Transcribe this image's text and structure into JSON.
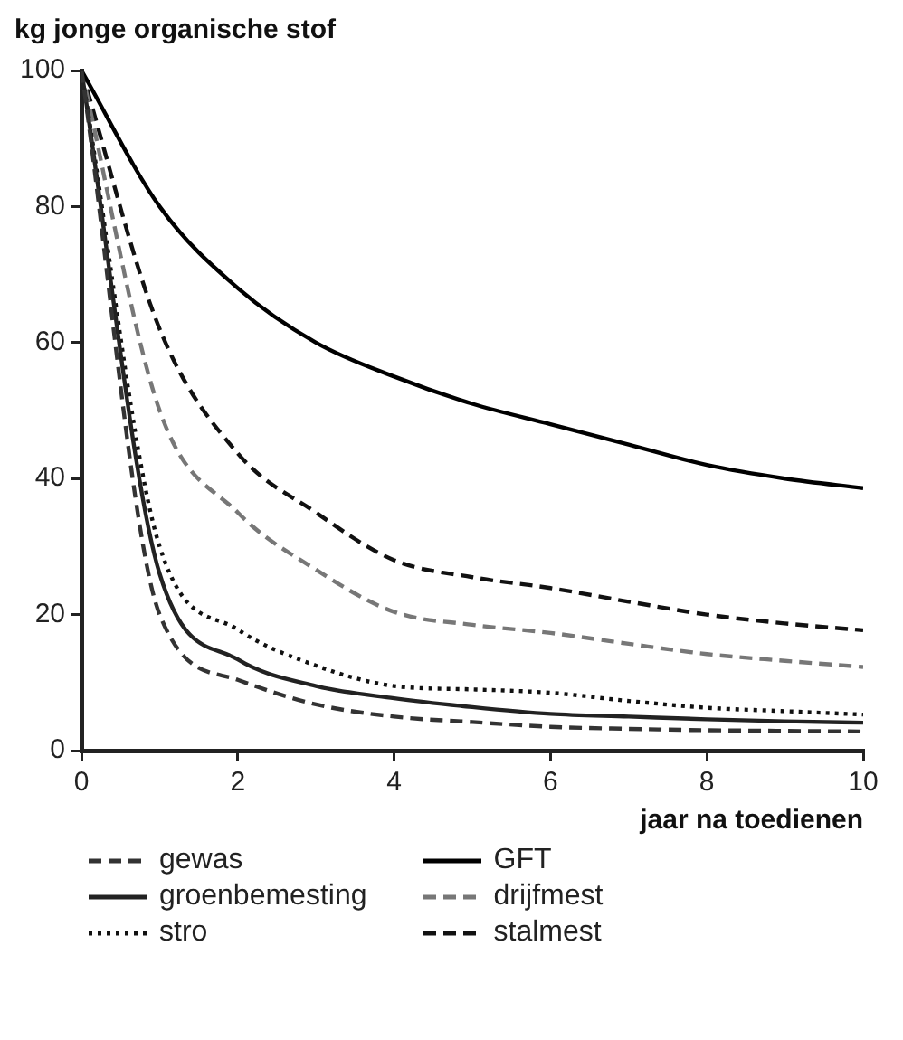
{
  "chart_data": {
    "type": "line",
    "ylabel": "kg jonge  organische stof",
    "xlabel": "jaar na toedienen",
    "x": [
      0,
      1,
      2,
      3,
      4,
      5,
      6,
      7,
      8,
      9,
      10
    ],
    "xlim": [
      0,
      10
    ],
    "xticks": [
      0,
      2,
      4,
      6,
      8,
      10
    ],
    "ylim": [
      0,
      100
    ],
    "yticks": [
      0,
      20,
      40,
      60,
      80,
      100
    ],
    "legend": "bottom",
    "marker": "none",
    "series": [
      {
        "name": "gewas",
        "color": "#333333",
        "line_style": "dashed",
        "values": [
          100,
          20,
          10.4,
          6.8,
          5,
          4.2,
          3.5,
          3.2,
          3,
          2.9,
          2.8
        ]
      },
      {
        "name": "groenbemesting",
        "color": "#222222",
        "line_style": "solid",
        "values": [
          100,
          26,
          13.4,
          9.5,
          7.7,
          6.4,
          5.4,
          5,
          4.6,
          4.3,
          4.1
        ]
      },
      {
        "name": "stro",
        "color": "#111111",
        "line_style": "dotted",
        "values": [
          100,
          30,
          17.8,
          12.5,
          9.5,
          9,
          8.5,
          7.3,
          6.3,
          5.8,
          5.3
        ]
      },
      {
        "name": "GFT",
        "color": "#000000",
        "line_style": "solid",
        "values": [
          100,
          80,
          68,
          60,
          55,
          51,
          48,
          45,
          42,
          40,
          38.6
        ]
      },
      {
        "name": "drijfmest",
        "color": "#777777",
        "line_style": "dashed",
        "values": [
          100,
          50,
          35,
          26.6,
          20.4,
          18.5,
          17.3,
          15.7,
          14.2,
          13.2,
          12.3
        ]
      },
      {
        "name": "stalmest",
        "color": "#111111",
        "line_style": "dashed",
        "values": [
          100,
          62,
          43.7,
          35,
          28,
          25.5,
          23.9,
          21.9,
          20,
          18.7,
          17.7
        ]
      }
    ]
  }
}
